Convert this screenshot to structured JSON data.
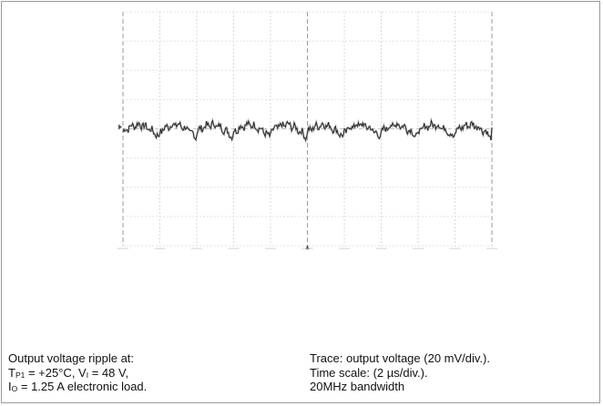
{
  "chart_data": {
    "type": "line",
    "title": "",
    "xlabel": "",
    "ylabel": "",
    "grid": true,
    "divisions": {
      "horizontal": 10,
      "vertical": 8
    },
    "xlim": [
      0,
      20
    ],
    "ylim": [
      -80,
      80
    ],
    "x_unit": "µs",
    "y_unit": "mV",
    "ripple_period_us": 2.0,
    "trace_offset_mV": 0,
    "series": [
      {
        "name": "",
        "color": "#2a2a2a",
        "ripple_peak_to_peak_mV": 10,
        "shape_points": [
          {
            "x_us": 0.0,
            "y_mV": -2
          },
          {
            "x_us": 0.4,
            "y_mV": 1.5
          },
          {
            "x_us": 0.9,
            "y_mV": 3
          },
          {
            "x_us": 1.3,
            "y_mV": 1
          },
          {
            "x_us": 1.75,
            "y_mV": -3
          },
          {
            "x_us": 1.95,
            "y_mV": -6
          },
          {
            "x_us": 2.0,
            "y_mV": -2
          }
        ]
      }
    ]
  },
  "caption_left": {
    "line1": "Output voltage ripple at:",
    "line2_prefix": "T",
    "line2_sub": "P1",
    "line2_mid": " = +25°C, V",
    "line2_sub2": "I",
    "line2_suffix": " = 48 V,",
    "line3_prefix": "I",
    "line3_sub": "O",
    "line3_suffix": " = 1.25 A electronic load."
  },
  "caption_right": {
    "line1": "Trace: output voltage (20 mV/div.).",
    "line2": "Time scale: (2 µs/div.).",
    "line3": "20MHz bandwidth"
  }
}
